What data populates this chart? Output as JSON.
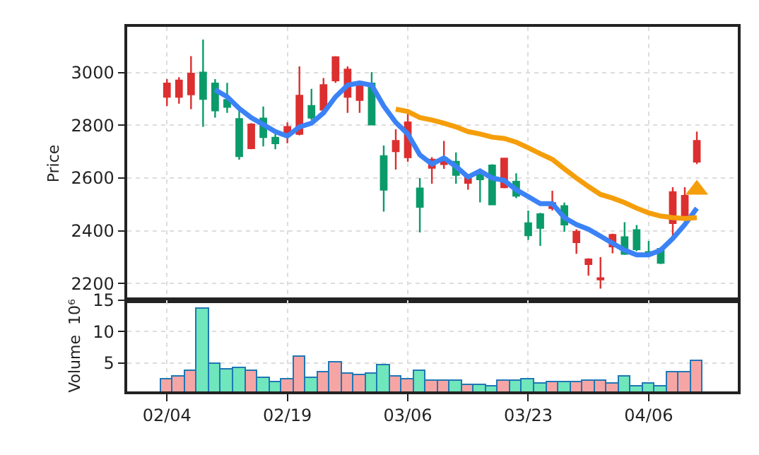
{
  "chart_data": [
    {
      "type": "candlestick",
      "ylabel": "Price",
      "grid": true,
      "tick_labels": "y",
      "ylim": [
        2137,
        3173
      ],
      "yticks": [
        2200,
        2400,
        2600,
        2800,
        3000
      ],
      "categories": [
        "02/04",
        null,
        null,
        null,
        null,
        null,
        null,
        null,
        null,
        null,
        "02/19",
        null,
        null,
        null,
        null,
        null,
        null,
        null,
        null,
        null,
        "03/06",
        null,
        null,
        null,
        null,
        null,
        null,
        null,
        null,
        null,
        "03/23",
        null,
        null,
        null,
        null,
        null,
        null,
        null,
        null,
        null,
        "04/06",
        null,
        null,
        null,
        null
      ],
      "ohlc": [
        [
          2908,
          2975,
          2873,
          2958
        ],
        [
          2908,
          2982,
          2882,
          2970
        ],
        [
          2917,
          3062,
          2861,
          2996
        ],
        [
          3000,
          3125,
          2794,
          2900
        ],
        [
          2958,
          2975,
          2829,
          2856
        ],
        [
          2896,
          2961,
          2847,
          2870
        ],
        [
          2824,
          2856,
          2670,
          2683
        ],
        [
          2713,
          2808,
          2709,
          2803
        ],
        [
          2826,
          2871,
          2720,
          2755
        ],
        [
          2753,
          2767,
          2709,
          2732
        ],
        [
          2773,
          2811,
          2732,
          2794
        ],
        [
          2767,
          3023,
          2762,
          2912
        ],
        [
          2873,
          2938,
          2820,
          2829
        ],
        [
          2859,
          2979,
          2847,
          2952
        ],
        [
          2970,
          3062,
          2961,
          3058
        ],
        [
          2908,
          3023,
          2847,
          3011
        ],
        [
          2896,
          2961,
          2847,
          2952
        ],
        [
          2958,
          3002,
          2803,
          2803
        ],
        [
          2683,
          2723,
          2473,
          2556
        ],
        [
          2702,
          2785,
          2632,
          2741
        ],
        [
          2679,
          2847,
          2662,
          2811
        ],
        [
          2561,
          2600,
          2394,
          2491
        ],
        [
          2639,
          2679,
          2579,
          2670
        ],
        [
          2653,
          2741,
          2635,
          2676
        ],
        [
          2662,
          2697,
          2579,
          2612
        ],
        [
          2582,
          2612,
          2556,
          2609
        ],
        [
          2612,
          2632,
          2508,
          2595
        ],
        [
          2648,
          2652,
          2500,
          2500
        ],
        [
          2565,
          2676,
          2561,
          2674
        ],
        [
          2586,
          2618,
          2524,
          2533
        ],
        [
          2429,
          2477,
          2366,
          2383
        ],
        [
          2463,
          2468,
          2343,
          2411
        ],
        [
          2486,
          2552,
          2477,
          2505
        ],
        [
          2494,
          2507,
          2397,
          2424
        ],
        [
          2357,
          2406,
          2313,
          2397
        ],
        [
          2274,
          2296,
          2230,
          2292
        ],
        [
          2216,
          2300,
          2181,
          2221
        ],
        [
          2341,
          2389,
          2315,
          2385
        ],
        [
          2376,
          2433,
          2309,
          2313
        ],
        [
          2403,
          2422,
          2323,
          2330
        ],
        [
          2320,
          2362,
          2309,
          2316
        ],
        [
          2332,
          2339,
          2274,
          2279
        ],
        [
          2429,
          2565,
          2380,
          2547
        ],
        [
          2456,
          2565,
          2438,
          2533
        ],
        [
          2662,
          2776,
          2653,
          2741
        ]
      ],
      "colors": [
        "#dc2f2f",
        "#dc2f2f",
        "#dc2f2f",
        "#0b9b6b",
        "#0b9b6b",
        "#0b9b6b",
        "#0b9b6b",
        "#dc2f2f",
        "#0b9b6b",
        "#0b9b6b",
        "#dc2f2f",
        "#dc2f2f",
        "#0b9b6b",
        "#dc2f2f",
        "#dc2f2f",
        "#dc2f2f",
        "#dc2f2f",
        "#0b9b6b",
        "#0b9b6b",
        "#dc2f2f",
        "#dc2f2f",
        "#0b9b6b",
        "#dc2f2f",
        "#dc2f2f",
        "#0b9b6b",
        "#dc2f2f",
        "#0b9b6b",
        "#0b9b6b",
        "#dc2f2f",
        "#0b9b6b",
        "#0b9b6b",
        "#0b9b6b",
        "#dc2f2f",
        "#0b9b6b",
        "#dc2f2f",
        "#dc2f2f",
        "#dc2f2f",
        "#dc2f2f",
        "#0b9b6b",
        "#0b9b6b",
        "#0b9b6b",
        "#0b9b6b",
        "#dc2f2f",
        "#dc2f2f",
        "#dc2f2f"
      ],
      "series": [
        {
          "type": "line",
          "color": "#3b82f6",
          "values": [
            null,
            null,
            null,
            null,
            2935,
            2908,
            2864,
            2829,
            2803,
            2776,
            2759,
            2794,
            2808,
            2847,
            2908,
            2952,
            2961,
            2952,
            2873,
            2811,
            2767,
            2688,
            2653,
            2676,
            2644,
            2604,
            2627,
            2600,
            2591,
            2556,
            2530,
            2503,
            2503,
            2450,
            2424,
            2406,
            2380,
            2353,
            2327,
            2309,
            2309,
            2327,
            2371,
            2424,
            2486
          ]
        },
        {
          "type": "line",
          "color": "#f59e0b",
          "values": [
            null,
            null,
            null,
            null,
            null,
            null,
            null,
            null,
            null,
            null,
            null,
            null,
            null,
            null,
            null,
            null,
            null,
            null,
            null,
            2861,
            2852,
            2829,
            2820,
            2808,
            2794,
            2776,
            2767,
            2755,
            2750,
            2736,
            2715,
            2692,
            2671,
            2635,
            2600,
            2568,
            2538,
            2524,
            2507,
            2486,
            2468,
            2456,
            2450,
            2447,
            2450
          ]
        },
        {
          "type": "scatter",
          "marker": "triangle",
          "color": "#f59e0b",
          "values": [
            null,
            null,
            null,
            null,
            null,
            null,
            null,
            null,
            null,
            null,
            null,
            null,
            null,
            null,
            null,
            null,
            null,
            null,
            null,
            null,
            null,
            null,
            null,
            null,
            null,
            null,
            null,
            null,
            null,
            null,
            null,
            null,
            null,
            null,
            null,
            null,
            null,
            null,
            null,
            null,
            null,
            null,
            null,
            null,
            2556
          ]
        }
      ]
    },
    {
      "type": "bar",
      "ylabel": "Volume  10⁶",
      "grid": true,
      "ylim": [
        0.5,
        15
      ],
      "yticks": [
        5,
        10,
        15
      ],
      "categories": [
        "02/04",
        null,
        null,
        null,
        null,
        null,
        null,
        null,
        null,
        null,
        "02/19",
        null,
        null,
        null,
        null,
        null,
        null,
        null,
        null,
        null,
        "03/06",
        null,
        null,
        null,
        null,
        null,
        null,
        null,
        null,
        null,
        "03/23",
        null,
        null,
        null,
        null,
        null,
        null,
        null,
        null,
        null,
        "04/06",
        null,
        null,
        null,
        null
      ],
      "values": [
        2.4,
        2.8,
        3.7,
        13.7,
        4.8,
        3.9,
        4.1,
        3.8,
        2.6,
        1.9,
        2.4,
        6.0,
        2.6,
        3.5,
        5.1,
        3.3,
        3.0,
        3.3,
        4.6,
        2.8,
        2.4,
        3.8,
        2.1,
        2.1,
        2.1,
        1.6,
        1.6,
        1.4,
        2.1,
        2.1,
        2.4,
        1.7,
        1.9,
        1.9,
        1.9,
        2.1,
        2.1,
        1.7,
        2.8,
        1.3,
        1.7,
        1.3,
        3.5,
        3.5,
        5.3
      ],
      "colors": [
        "#f6a5a5",
        "#f6a5a5",
        "#f6a5a5",
        "#6fe6bb",
        "#6fe6bb",
        "#6fe6bb",
        "#6fe6bb",
        "#f6a5a5",
        "#6fe6bb",
        "#6fe6bb",
        "#f6a5a5",
        "#f6a5a5",
        "#6fe6bb",
        "#f6a5a5",
        "#f6a5a5",
        "#f6a5a5",
        "#f6a5a5",
        "#6fe6bb",
        "#6fe6bb",
        "#f6a5a5",
        "#f6a5a5",
        "#6fe6bb",
        "#f6a5a5",
        "#f6a5a5",
        "#6fe6bb",
        "#f6a5a5",
        "#6fe6bb",
        "#6fe6bb",
        "#f6a5a5",
        "#6fe6bb",
        "#6fe6bb",
        "#6fe6bb",
        "#f6a5a5",
        "#6fe6bb",
        "#f6a5a5",
        "#f6a5a5",
        "#f6a5a5",
        "#f6a5a5",
        "#6fe6bb",
        "#6fe6bb",
        "#6fe6bb",
        "#6fe6bb",
        "#f6a5a5",
        "#f6a5a5",
        "#f6a5a5"
      ]
    }
  ]
}
